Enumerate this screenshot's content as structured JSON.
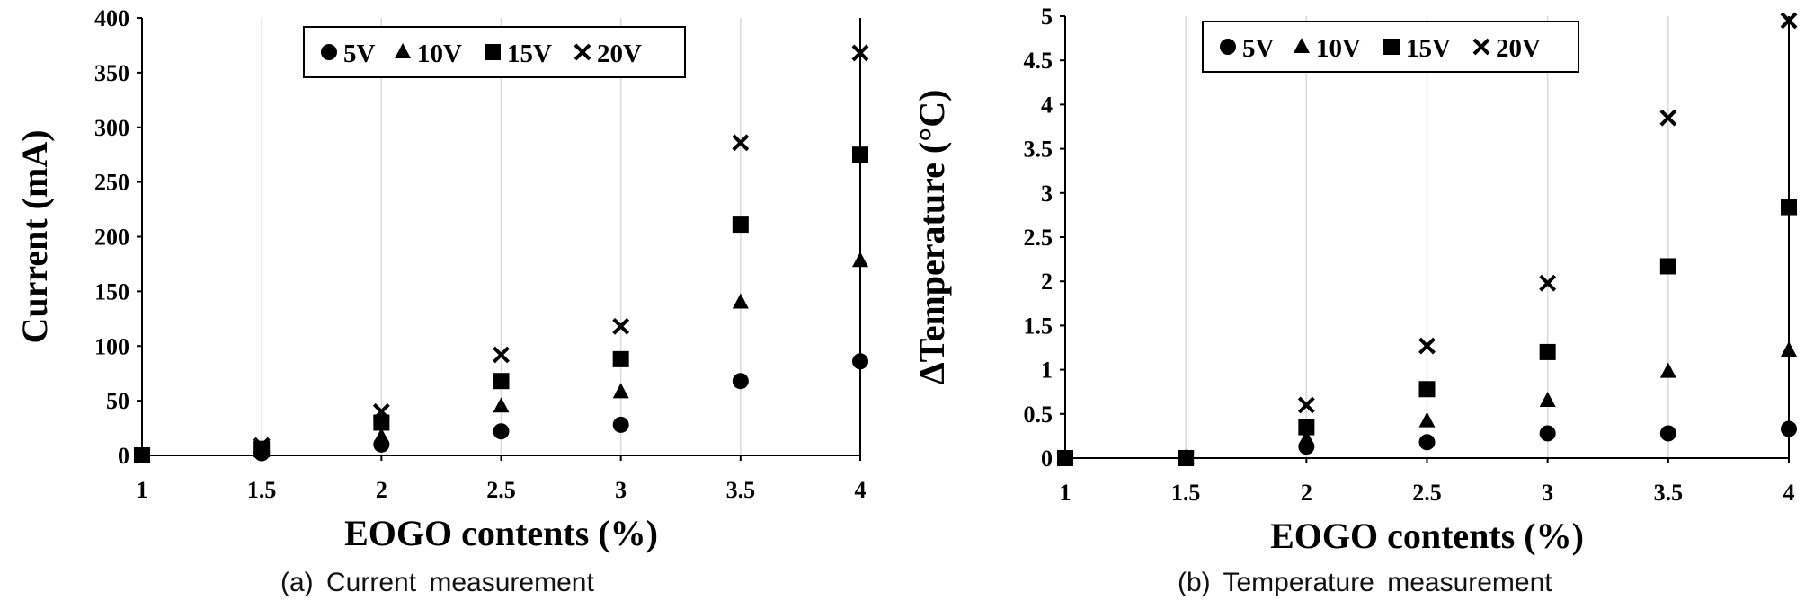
{
  "chart_data": [
    {
      "type": "scatter",
      "caption": "(a) Current measurement",
      "xlabel": "EOGO contents (%)",
      "ylabel": "Current (mA)",
      "xlim": [
        1,
        4
      ],
      "ylim": [
        0,
        400
      ],
      "xticks": [
        "1",
        "1.5",
        "2",
        "2.5",
        "3",
        "3.5",
        "4"
      ],
      "yticks": [
        "0",
        "50",
        "100",
        "150",
        "200",
        "250",
        "300",
        "350",
        "400"
      ],
      "grid": "vertical",
      "legend_position": "top-center",
      "x": [
        1,
        1.5,
        2,
        2.5,
        3,
        3.5,
        4
      ],
      "series": [
        {
          "name": "5V",
          "marker": "circle",
          "values": [
            0,
            2,
            10,
            22,
            28,
            68,
            86
          ]
        },
        {
          "name": "10V",
          "marker": "triangle",
          "values": [
            0,
            4,
            17,
            45,
            58,
            140,
            178
          ]
        },
        {
          "name": "15V",
          "marker": "square",
          "values": [
            0,
            6,
            30,
            68,
            88,
            211,
            275
          ]
        },
        {
          "name": "20V",
          "marker": "x",
          "values": [
            0,
            9,
            40,
            92,
            118,
            286,
            368
          ]
        }
      ]
    },
    {
      "type": "scatter",
      "caption": "(b) Temperature measurement",
      "xlabel": "EOGO contents (%)",
      "ylabel": "ΔTemperature (°C)",
      "xlim": [
        1,
        4
      ],
      "ylim": [
        0,
        5
      ],
      "xticks": [
        "1",
        "1.5",
        "2",
        "2.5",
        "3",
        "3.5",
        "4"
      ],
      "yticks": [
        "0",
        "0.5",
        "1",
        "1.5",
        "2",
        "2.5",
        "3",
        "3.5",
        "4",
        "4.5",
        "5"
      ],
      "grid": "vertical",
      "legend_position": "top-center",
      "x": [
        1,
        1.5,
        2,
        2.5,
        3,
        3.5,
        4
      ],
      "series": [
        {
          "name": "5V",
          "marker": "circle",
          "values": [
            0,
            0,
            0.13,
            0.18,
            0.28,
            0.28,
            0.33
          ]
        },
        {
          "name": "10V",
          "marker": "triangle",
          "values": [
            0,
            0,
            0.22,
            0.42,
            0.65,
            0.98,
            1.22
          ]
        },
        {
          "name": "15V",
          "marker": "square",
          "values": [
            0,
            0,
            0.35,
            0.78,
            1.2,
            2.17,
            2.84
          ]
        },
        {
          "name": "20V",
          "marker": "x",
          "values": [
            0,
            0,
            0.6,
            1.27,
            1.98,
            3.85,
            4.95
          ]
        }
      ]
    }
  ]
}
